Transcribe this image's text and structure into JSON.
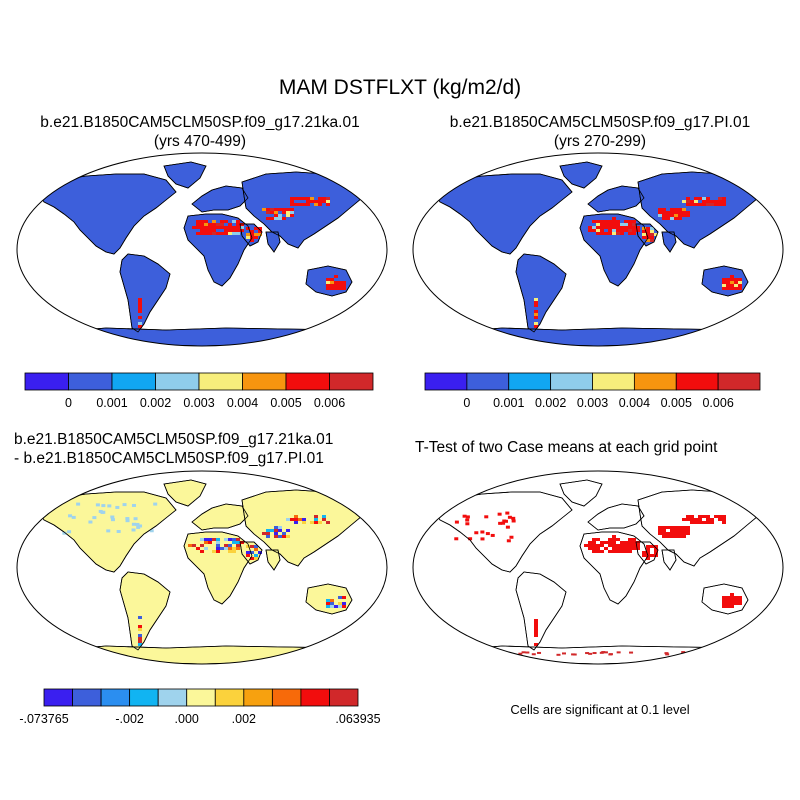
{
  "figure": {
    "title": "MAM DSTFLXT (kg/m2/d)",
    "panels": [
      {
        "id": "case1",
        "title_line1": "b.e21.B1850CAM5CLM50SP.f09_g17.21ka.01",
        "title_line2": "(yrs 470-499)"
      },
      {
        "id": "case2",
        "title_line1": "b.e21.B1850CAM5CLM50SP.f09_g17.PI.01",
        "title_line2": "(yrs 270-299)"
      },
      {
        "id": "diff",
        "title_line1": "b.e21.B1850CAM5CLM50SP.f09_g17.21ka.01",
        "title_line2": "- b.e21.B1850CAM5CLM50SP.f09_g17.PI.01"
      },
      {
        "id": "ttest",
        "title_line1": "T-Test of two Case means at each grid point"
      }
    ],
    "significance_note": "Cells are significant at 0.1 level"
  },
  "colorbars": {
    "top": {
      "colors": [
        "#3a1ff0",
        "#3d5fdb",
        "#11a6f2",
        "#8fcdeb",
        "#f7ee7c",
        "#f7950f",
        "#f20d0d",
        "#d1282a"
      ],
      "labels": [
        "0",
        "0.001",
        "0.002",
        "0.003",
        "0.004",
        "0.005",
        "0.006"
      ]
    },
    "diff": {
      "colors": [
        "#3a1ff0",
        "#3d5fdb",
        "#2b8ef0",
        "#11b4f2",
        "#9fd3ed",
        "#fbf79a",
        "#fbd23c",
        "#f7a10f",
        "#f76a0a",
        "#f20d0d",
        "#d1282a"
      ],
      "labels": [
        "-.073765",
        "-.002",
        ".000",
        ".002",
        ".063935"
      ]
    }
  },
  "chart_data": [
    {
      "type": "heatmap",
      "title": "b.e21.B1850CAM5CLM50SP.f09_g17.21ka.01 (yrs 470-499)",
      "projection": "Robinson",
      "variable": "DSTFLXT",
      "units": "kg/m2/d",
      "levels": [
        0,
        0.001,
        0.002,
        0.003,
        0.004,
        0.005,
        0.006
      ],
      "land_background_color": "#3d5fdb",
      "high_flux_regions": [
        "Sahara",
        "Arabian Peninsula",
        "Middle East",
        "Central Asia",
        "Taklimakan / Gobi",
        "Australia interior",
        "Patagonia"
      ]
    },
    {
      "type": "heatmap",
      "title": "b.e21.B1850CAM5CLM50SP.f09_g17.PI.01 (yrs 270-299)",
      "projection": "Robinson",
      "variable": "DSTFLXT",
      "units": "kg/m2/d",
      "levels": [
        0,
        0.001,
        0.002,
        0.003,
        0.004,
        0.005,
        0.006
      ],
      "land_background_color": "#3d5fdb",
      "high_flux_regions": [
        "Sahara",
        "Arabian Peninsula",
        "Middle East",
        "Central Asia",
        "Australia interior",
        "Patagonia"
      ]
    },
    {
      "type": "heatmap",
      "title": "21ka.01 - PI.01 difference",
      "projection": "Robinson",
      "range": [
        -0.073765,
        0.063935
      ],
      "labeled_levels": [
        -0.073765,
        -0.002,
        0.0,
        0.002,
        0.063935
      ],
      "land_background_color": "#fbf79a"
    },
    {
      "type": "heatmap",
      "title": "T-Test of two Case means at each grid point",
      "projection": "Robinson",
      "significance_level": 0.1,
      "significant_color": "#f20d0d",
      "significant_regions": [
        "Sahara",
        "Arabian Peninsula",
        "Middle East",
        "Central Asia",
        "Australia",
        "Patagonia",
        "Antarctic coast",
        "Western North America",
        "Northern Eurasia"
      ]
    }
  ]
}
